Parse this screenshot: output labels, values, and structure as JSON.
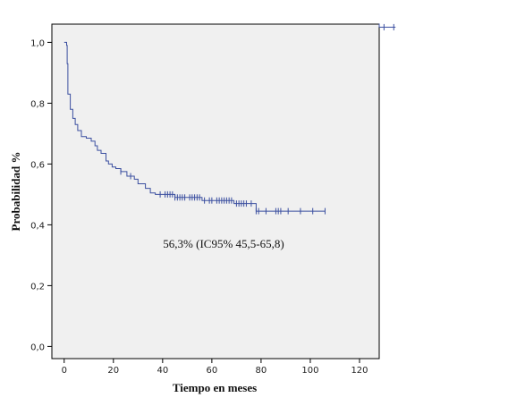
{
  "chart_data": {
    "type": "line",
    "xlabel": "Tiempo en meses",
    "ylabel": "Probabilidad %",
    "xlim": [
      -5,
      128
    ],
    "ylim": [
      -0.04,
      1.06
    ],
    "x_ticks": [
      0,
      20,
      40,
      60,
      80,
      100,
      120
    ],
    "y_ticks": [
      0.0,
      0.2,
      0.4,
      0.6,
      0.8,
      1.0
    ],
    "x_tick_labels": [
      "0",
      "20",
      "40",
      "60",
      "80",
      "100",
      "120"
    ],
    "y_tick_labels": [
      "0,0",
      "0,2",
      "0,4",
      "0,6",
      "0,8",
      "1,0"
    ],
    "annotation": "56,3% (IC95% 45,5-65,8)",
    "grid": false,
    "colors": {
      "plot_bg": "#f0f0f0",
      "line": "#3b4fa0",
      "axis": "#000000"
    },
    "series": [
      {
        "step_points": [
          [
            0,
            1.0
          ],
          [
            1,
            0.99
          ],
          [
            1.2,
            0.93
          ],
          [
            1.5,
            0.83
          ],
          [
            2.5,
            0.78
          ],
          [
            3.5,
            0.75
          ],
          [
            4.5,
            0.73
          ],
          [
            5.5,
            0.71
          ],
          [
            7,
            0.69
          ],
          [
            9,
            0.685
          ],
          [
            11,
            0.675
          ],
          [
            12.5,
            0.66
          ],
          [
            13.5,
            0.645
          ],
          [
            15,
            0.635
          ],
          [
            17,
            0.61
          ],
          [
            18,
            0.6
          ],
          [
            19.5,
            0.59
          ],
          [
            21,
            0.585
          ],
          [
            23,
            0.575
          ],
          [
            25.5,
            0.56
          ],
          [
            28.5,
            0.55
          ],
          [
            30,
            0.535
          ],
          [
            33,
            0.52
          ],
          [
            35,
            0.505
          ],
          [
            37,
            0.5
          ],
          [
            45,
            0.49
          ],
          [
            56,
            0.48
          ],
          [
            69,
            0.47
          ],
          [
            78,
            0.445
          ],
          [
            106,
            0.445
          ]
        ],
        "censor_x": [
          23,
          27,
          39,
          41,
          42,
          43,
          44,
          45,
          46,
          47,
          48,
          49,
          51,
          52,
          53,
          54,
          55,
          57,
          59,
          60,
          62,
          63,
          64,
          65,
          66,
          67,
          68,
          70,
          71,
          72,
          73,
          74,
          76,
          78,
          79,
          82,
          86,
          87,
          88,
          91,
          96,
          101,
          106
        ]
      }
    ],
    "legend_line": {
      "x": [
        128,
        131
      ],
      "y": [
        1.05,
        1.05
      ],
      "censor_x": [
        128.5,
        131
      ]
    }
  }
}
